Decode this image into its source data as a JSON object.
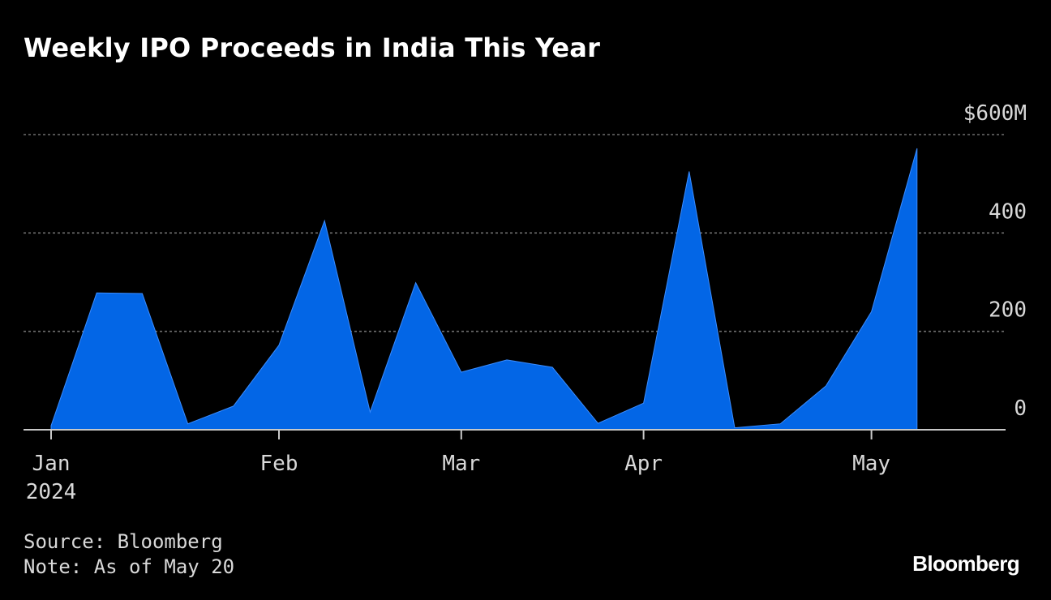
{
  "title": "Weekly IPO Proceeds in India This Year",
  "footer": {
    "source": "Source: Bloomberg",
    "note": "Note: As of May 20"
  },
  "brand": "Bloomberg",
  "colors": {
    "background": "#000000",
    "area_fill": "#0366e6",
    "grid": "#6e6e6e",
    "axis": "#c8c8c8",
    "text": "#ffffff",
    "tick_text": "#d9d9d9"
  },
  "chart_data": {
    "type": "area",
    "title": "Weekly IPO Proceeds in India This Year",
    "xlabel": "",
    "ylabel": "",
    "ylim": [
      0,
      600
    ],
    "y_unit_prefix": "$",
    "y_unit_suffix": "M",
    "y_ticks": [
      0,
      200,
      400,
      600
    ],
    "y_tick_labels": [
      "0",
      "200",
      "400",
      "$600M"
    ],
    "grid": true,
    "x_ticks": [
      {
        "week": 0,
        "label": "Jan",
        "sublabel": "2024"
      },
      {
        "week": 5,
        "label": "Feb",
        "sublabel": ""
      },
      {
        "week": 9,
        "label": "Mar",
        "sublabel": ""
      },
      {
        "week": 13,
        "label": "Apr",
        "sublabel": ""
      },
      {
        "week": 18,
        "label": "May",
        "sublabel": ""
      }
    ],
    "series": [
      {
        "name": "Weekly IPO proceeds",
        "x": [
          0,
          1,
          2,
          3,
          4,
          5,
          6,
          7,
          8,
          9,
          10,
          11,
          12,
          13,
          14,
          15,
          16,
          17,
          18,
          19
        ],
        "values": [
          8,
          278,
          277,
          12,
          48,
          172,
          425,
          36,
          299,
          117,
          142,
          127,
          13,
          54,
          525,
          4,
          12,
          89,
          240,
          572
        ]
      }
    ]
  }
}
